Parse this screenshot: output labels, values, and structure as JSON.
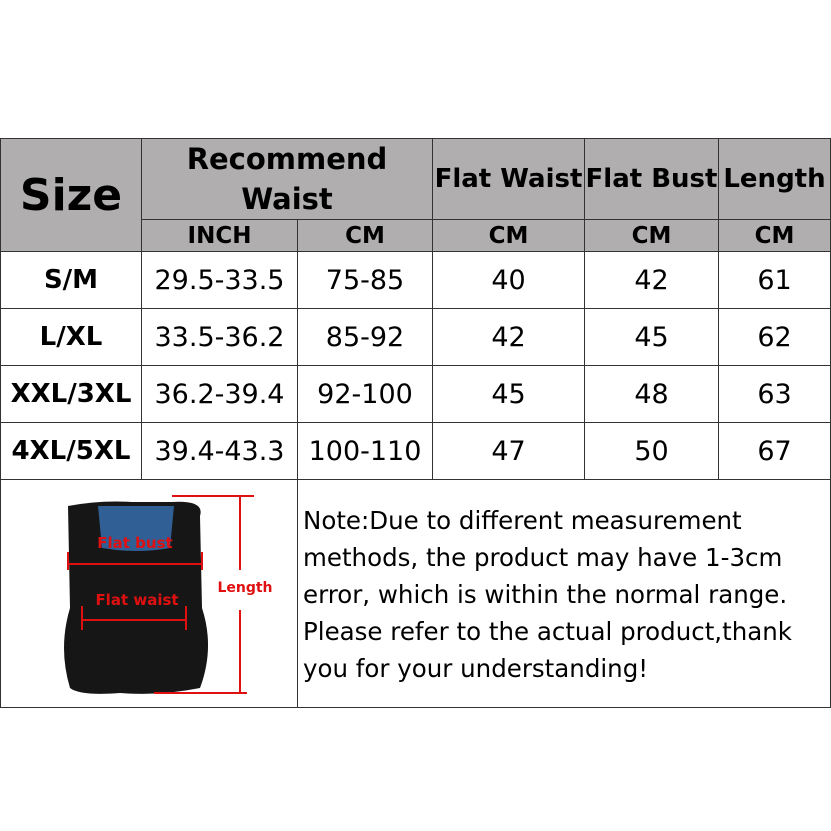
{
  "header": {
    "size": "Size",
    "recommend_waist": "Recommend Waist",
    "flat_waist": "Flat Waist",
    "flat_bust": "Flat Bust",
    "length": "Length",
    "inch": "INCH",
    "cm1": "CM",
    "cm2": "CM",
    "cm3": "CM",
    "cm4": "CM"
  },
  "rows": [
    {
      "size": "S/M",
      "inch": "29.5-33.5",
      "cm": "75-85",
      "waist": "40",
      "bust": "42",
      "length": "61"
    },
    {
      "size": "L/XL",
      "inch": "33.5-36.2",
      "cm": "85-92",
      "waist": "42",
      "bust": "45",
      "length": "62"
    },
    {
      "size": "XXL/3XL",
      "inch": "36.2-39.4",
      "cm": "92-100",
      "waist": "45",
      "bust": "48",
      "length": "63"
    },
    {
      "size": "4XL/5XL",
      "inch": "39.4-43.3",
      "cm": "100-110",
      "waist": "47",
      "bust": "50",
      "length": "67"
    }
  ],
  "diagram": {
    "flat_bust": "Flat bust",
    "flat_waist": "Flat waist",
    "length": "Length",
    "label_color": "#e01010"
  },
  "note": "Note:Due to different measurement methods, the product may have 1-3cm error, which is within the normal range. Please refer to the actual product,thank you for your understanding!"
}
